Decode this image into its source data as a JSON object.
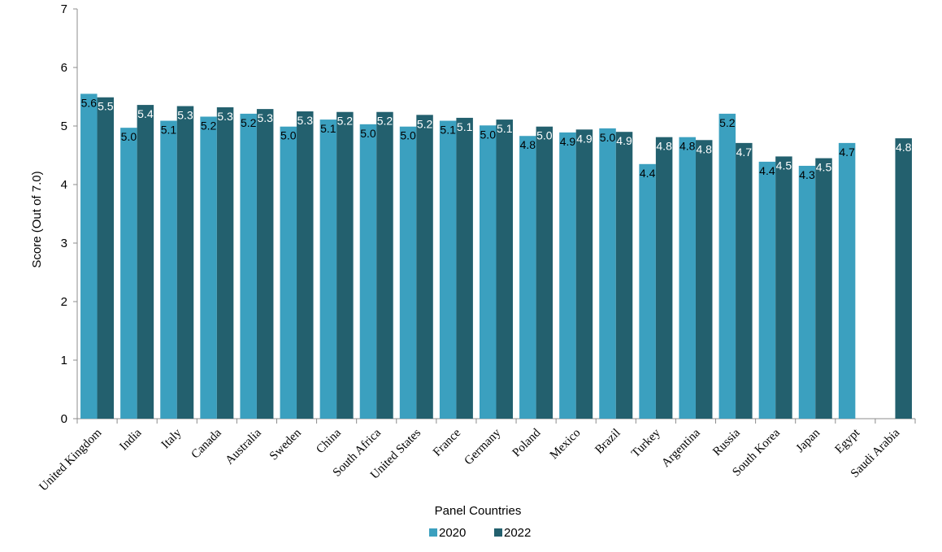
{
  "chart_data": {
    "type": "bar",
    "title": "",
    "xlabel": "Panel Countries",
    "ylabel": "Score (Out of 7.0)",
    "ylim": [
      0,
      7
    ],
    "yticks": [
      0,
      1,
      2,
      3,
      4,
      5,
      6,
      7
    ],
    "grid": false,
    "legend_position": "bottom",
    "categories": [
      "United Kingdom",
      "India",
      "Italy",
      "Canada",
      "Australia",
      "Sweden",
      "China",
      "South Africa",
      "United States",
      "France",
      "Germany",
      "Poland",
      "Mexico",
      "Brazil",
      "Turkey",
      "Argentina",
      "Russia",
      "South Korea",
      "Japan",
      "Egypt",
      "Saudi Arabia"
    ],
    "series": [
      {
        "name": "2020",
        "color": "#3ba0bf",
        "label_color": "#000000",
        "values": [
          5.55,
          4.97,
          5.09,
          5.16,
          5.21,
          4.99,
          5.11,
          5.03,
          4.99,
          5.09,
          5.01,
          4.83,
          4.89,
          4.96,
          4.35,
          4.81,
          5.21,
          4.39,
          4.32,
          4.71,
          null
        ],
        "labels": [
          "5.6",
          "5.0",
          "5.1",
          "5.2",
          "5.2",
          "5.0",
          "5.1",
          "5.0",
          "5.0",
          "5.1",
          "5.0",
          "4.8",
          "4.9",
          "5.0",
          "4.4",
          "4.8",
          "5.2",
          "4.4",
          "4.3",
          "4.7",
          ""
        ]
      },
      {
        "name": "2022",
        "color": "#23606e",
        "label_color": "#ffffff",
        "values": [
          5.49,
          5.36,
          5.34,
          5.32,
          5.29,
          5.25,
          5.24,
          5.24,
          5.19,
          5.14,
          5.11,
          4.99,
          4.94,
          4.9,
          4.81,
          4.76,
          4.71,
          4.48,
          4.45,
          null,
          4.79
        ],
        "labels": [
          "5.5",
          "5.4",
          "5.3",
          "5.3",
          "5.3",
          "5.3",
          "5.2",
          "5.2",
          "5.2",
          "5.1",
          "5.1",
          "5.0",
          "4.9",
          "4.9",
          "4.8",
          "4.8",
          "4.7",
          "4.5",
          "4.5",
          "",
          "4.8"
        ]
      }
    ]
  }
}
